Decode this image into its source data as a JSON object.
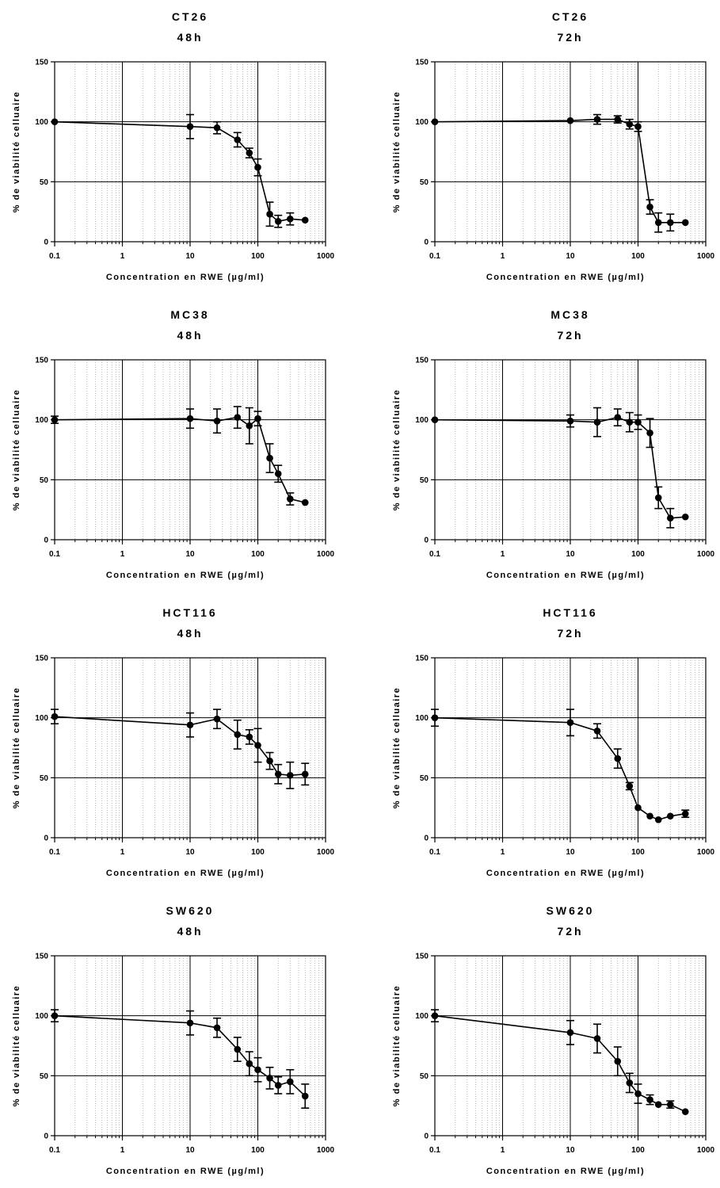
{
  "chart_data": [
    {
      "type": "line",
      "title_line1": "CT26",
      "title_line2": "48h",
      "xlabel": "Concentration en RWE (µg/ml)",
      "ylabel": "% de viabilité celluaire",
      "xscale": "log",
      "xlim": [
        0.1,
        1000
      ],
      "ylim": [
        0,
        150
      ],
      "xticks": [
        "0.1",
        "1",
        "10",
        "100",
        "1000"
      ],
      "yticks": [
        "0",
        "50",
        "100",
        "150"
      ],
      "grid": true,
      "x": [
        0.1,
        10,
        25,
        50,
        75,
        100,
        150,
        200,
        300,
        500
      ],
      "y": [
        100,
        96,
        95,
        85,
        74,
        62,
        23,
        17,
        19,
        18
      ],
      "err": [
        0,
        10,
        5,
        6,
        4,
        7,
        10,
        5,
        5,
        0
      ]
    },
    {
      "type": "line",
      "title_line1": "CT26",
      "title_line2": "72h",
      "xlabel": "Concentration en RWE (µg/ml)",
      "ylabel": "% de viabilité celluaire",
      "xscale": "log",
      "xlim": [
        0.1,
        1000
      ],
      "ylim": [
        0,
        150
      ],
      "xticks": [
        "0.1",
        "1",
        "10",
        "100",
        "1000"
      ],
      "yticks": [
        "0",
        "50",
        "100",
        "150"
      ],
      "grid": true,
      "x": [
        0.1,
        10,
        25,
        50,
        75,
        100,
        150,
        200,
        300,
        500
      ],
      "y": [
        100,
        101,
        102,
        102,
        98,
        96,
        29,
        16,
        16,
        16
      ],
      "err": [
        0,
        0,
        4,
        3,
        4,
        4,
        6,
        8,
        7,
        0
      ]
    },
    {
      "type": "line",
      "title_line1": "MC38",
      "title_line2": "48h",
      "xlabel": "Concentration en RWE (µg/ml)",
      "ylabel": "% de viabilité celluaire",
      "xscale": "log",
      "xlim": [
        0.1,
        1000
      ],
      "ylim": [
        0,
        150
      ],
      "xticks": [
        "0.1",
        "1",
        "10",
        "100",
        "1000"
      ],
      "yticks": [
        "0",
        "50",
        "100",
        "150"
      ],
      "grid": true,
      "x": [
        0.1,
        10,
        25,
        50,
        75,
        100,
        150,
        200,
        300,
        500
      ],
      "y": [
        100,
        101,
        99,
        102,
        95,
        101,
        68,
        55,
        34,
        31
      ],
      "err": [
        3,
        8,
        10,
        9,
        15,
        6,
        12,
        7,
        5,
        0
      ]
    },
    {
      "type": "line",
      "title_line1": "MC38",
      "title_line2": "72h",
      "xlabel": "Concentration en RWE (µg/ml)",
      "ylabel": "% de viabilité celluaire",
      "xscale": "log",
      "xlim": [
        0.1,
        1000
      ],
      "ylim": [
        0,
        150
      ],
      "xticks": [
        "0.1",
        "1",
        "10",
        "100",
        "1000"
      ],
      "yticks": [
        "0",
        "50",
        "100",
        "150"
      ],
      "grid": true,
      "x": [
        0.1,
        10,
        25,
        50,
        75,
        100,
        150,
        200,
        300,
        500
      ],
      "y": [
        100,
        99,
        98,
        102,
        98,
        98,
        89,
        35,
        18,
        19
      ],
      "err": [
        0,
        5,
        12,
        7,
        8,
        6,
        12,
        9,
        8,
        0
      ]
    },
    {
      "type": "line",
      "title_line1": "HCT116",
      "title_line2": "48h",
      "xlabel": "Concentration en RWE (µg/ml)",
      "ylabel": "% de viabilité celluaire",
      "xscale": "log",
      "xlim": [
        0.1,
        1000
      ],
      "ylim": [
        0,
        150
      ],
      "xticks": [
        "0.1",
        "1",
        "10",
        "100",
        "1000"
      ],
      "yticks": [
        "0",
        "50",
        "100",
        "150"
      ],
      "grid": true,
      "x": [
        0.1,
        10,
        25,
        50,
        75,
        100,
        150,
        200,
        300,
        500
      ],
      "y": [
        101,
        94,
        99,
        86,
        84,
        77,
        64,
        53,
        52,
        53
      ],
      "err": [
        6,
        10,
        8,
        12,
        6,
        14,
        7,
        8,
        11,
        9
      ]
    },
    {
      "type": "line",
      "title_line1": "HCT116",
      "title_line2": "72h",
      "xlabel": "Concentration en RWE (µg/ml)",
      "ylabel": "% de viabilité celluaire",
      "xscale": "log",
      "xlim": [
        0.1,
        1000
      ],
      "ylim": [
        0,
        150
      ],
      "xticks": [
        "0.1",
        "1",
        "10",
        "100",
        "1000"
      ],
      "yticks": [
        "0",
        "50",
        "100",
        "150"
      ],
      "grid": true,
      "x": [
        0.1,
        10,
        25,
        50,
        75,
        100,
        150,
        200,
        300,
        500
      ],
      "y": [
        100,
        96,
        89,
        66,
        43,
        25,
        18,
        15,
        18,
        20
      ],
      "err": [
        7,
        11,
        6,
        8,
        3,
        0,
        0,
        0,
        0,
        3
      ]
    },
    {
      "type": "line",
      "title_line1": "SW620",
      "title_line2": "48h",
      "xlabel": "Concentration en RWE (µg/ml)",
      "ylabel": "% de viabilité celluaire",
      "xscale": "log",
      "xlim": [
        0.1,
        1000
      ],
      "ylim": [
        0,
        150
      ],
      "xticks": [
        "0.1",
        "1",
        "10",
        "100",
        "1000"
      ],
      "yticks": [
        "0",
        "50",
        "100",
        "150"
      ],
      "grid": true,
      "x": [
        0.1,
        10,
        25,
        50,
        75,
        100,
        150,
        200,
        300,
        500
      ],
      "y": [
        100,
        94,
        90,
        72,
        60,
        55,
        48,
        42,
        45,
        33
      ],
      "err": [
        5,
        10,
        8,
        10,
        10,
        10,
        9,
        7,
        10,
        10
      ]
    },
    {
      "type": "line",
      "title_line1": "SW620",
      "title_line2": "72h",
      "xlabel": "Concentration en RWE (µg/ml)",
      "ylabel": "% de viabilité celluaire",
      "xscale": "log",
      "xlim": [
        0.1,
        1000
      ],
      "ylim": [
        0,
        150
      ],
      "xticks": [
        "0.1",
        "1",
        "10",
        "100",
        "1000"
      ],
      "yticks": [
        "0",
        "50",
        "100",
        "150"
      ],
      "grid": true,
      "x": [
        0.1,
        10,
        25,
        50,
        75,
        100,
        150,
        200,
        300,
        500
      ],
      "y": [
        100,
        86,
        81,
        62,
        44,
        35,
        30,
        26,
        26,
        20
      ],
      "err": [
        5,
        10,
        12,
        12,
        8,
        8,
        4,
        0,
        3,
        0
      ]
    }
  ]
}
